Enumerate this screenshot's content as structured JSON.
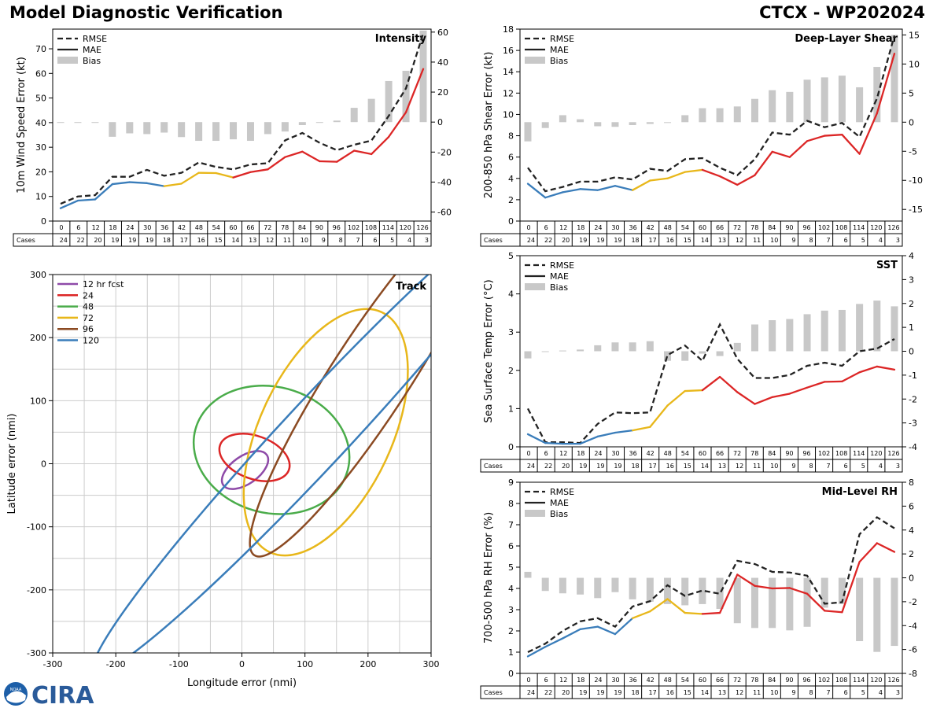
{
  "header": {
    "title": "Model Diagnostic Verification",
    "storm_id": "CTCX - WP202024"
  },
  "logos": {
    "noaa_text": "NOAA",
    "cira_text": "CIRA"
  },
  "colors": {
    "blue": "#3a7dba",
    "yellow": "#e8b71a",
    "red": "#dc2626",
    "bias": "#c8c8c8",
    "green": "#4aac4a",
    "brown": "#8b4a22",
    "purple": "#8e4aa8",
    "grid": "#cccccc"
  },
  "hours": [
    0,
    6,
    12,
    18,
    24,
    30,
    36,
    42,
    48,
    54,
    60,
    66,
    72,
    78,
    84,
    90,
    96,
    102,
    108,
    114,
    120,
    126
  ],
  "cases": [
    24,
    22,
    20,
    19,
    19,
    19,
    18,
    17,
    16,
    15,
    14,
    13,
    12,
    11,
    10,
    9,
    8,
    7,
    6,
    5,
    4,
    3
  ],
  "cases_label": "Cases",
  "legend_labels": {
    "rmse": "RMSE",
    "mae": "MAE",
    "bias": "Bias"
  },
  "chart_data": [
    {
      "id": "intensity",
      "type": "line",
      "title": "Intensity",
      "ylabel": "10m Wind Speed Error (kt)",
      "ylim": [
        0,
        78
      ],
      "yticks": [
        0,
        10,
        20,
        30,
        40,
        50,
        60,
        70
      ],
      "ylim2": [
        -66,
        62
      ],
      "yticks2": [
        -60,
        -40,
        -20,
        0,
        20,
        40,
        60
      ],
      "rmse": [
        7,
        10,
        10.5,
        18,
        18,
        20.8,
        18.4,
        19.6,
        23.8,
        22,
        21,
        23,
        23.5,
        32.8,
        35.8,
        31.8,
        28.8,
        31,
        32.7,
        42.7,
        53.9,
        76.3
      ],
      "mae": [
        5.2,
        8.3,
        8.8,
        15,
        15.8,
        15.4,
        14.2,
        15.2,
        19.6,
        19.5,
        17.7,
        19.9,
        21,
        26,
        28.2,
        24.3,
        24.1,
        28.6,
        27.2,
        34.2,
        44.2,
        61.8
      ],
      "bias": [
        0,
        0,
        -0.5,
        -9.8,
        -7.5,
        -8,
        -7,
        -10,
        -12.5,
        -12.5,
        -11.5,
        -12.5,
        -8,
        -6.3,
        -2,
        -0.5,
        1,
        9.5,
        15.5,
        27.4,
        34.2,
        61
      ]
    },
    {
      "id": "shear",
      "type": "line",
      "title": "Deep-Layer Shear",
      "ylabel": "200-850 hPa Shear Error (kt)",
      "ylim": [
        0,
        18
      ],
      "yticks": [
        0,
        2,
        4,
        6,
        8,
        10,
        12,
        14,
        16,
        18
      ],
      "ylim2": [
        -17,
        16
      ],
      "yticks2": [
        -15,
        -10,
        -5,
        0,
        5,
        10,
        15
      ],
      "rmse": [
        5,
        2.8,
        3.2,
        3.7,
        3.7,
        4.1,
        3.9,
        4.9,
        4.7,
        5.8,
        5.9,
        5,
        4.3,
        5.8,
        8.3,
        8.1,
        9.4,
        8.8,
        9.2,
        7.9,
        11.5,
        17.4
      ],
      "mae": [
        3.5,
        2.2,
        2.7,
        3,
        2.9,
        3.3,
        2.9,
        3.8,
        4,
        4.6,
        4.8,
        4.2,
        3.4,
        4.3,
        6.5,
        6,
        7.5,
        8,
        8.1,
        6.3,
        10.1,
        15.7
      ],
      "bias": [
        -3.3,
        -1,
        1.2,
        0.5,
        -0.7,
        -0.8,
        -0.5,
        -0.3,
        0,
        1.2,
        2.4,
        2.4,
        2.7,
        4,
        5.5,
        5.2,
        7.3,
        7.7,
        8,
        6,
        9.5,
        15
      ]
    },
    {
      "id": "sst",
      "type": "line",
      "title": "SST",
      "ylabel": "Sea Surface Temp Error (°C)",
      "ylim": [
        0,
        5
      ],
      "yticks": [
        0,
        1,
        2,
        3,
        4,
        5
      ],
      "ylim2": [
        -4,
        4
      ],
      "yticks2": [
        -4,
        -3,
        -2,
        -1,
        0,
        1,
        2,
        3,
        4
      ],
      "rmse": [
        1,
        0.12,
        0.12,
        0.1,
        0.6,
        0.9,
        0.88,
        0.9,
        2.4,
        2.65,
        2.25,
        3.2,
        2.3,
        1.8,
        1.8,
        1.88,
        2.12,
        2.2,
        2.12,
        2.5,
        2.57,
        2.82
      ],
      "mae": [
        0.33,
        0.1,
        0.08,
        0.08,
        0.27,
        0.37,
        0.43,
        0.52,
        1.08,
        1.46,
        1.48,
        1.83,
        1.43,
        1.12,
        1.3,
        1.39,
        1.55,
        1.7,
        1.71,
        1.95,
        2.1,
        2.02
      ],
      "bias": [
        -0.3,
        0,
        0.03,
        0.07,
        0.25,
        0.37,
        0.37,
        0.42,
        -0.4,
        -0.4,
        -0.1,
        -0.2,
        0.35,
        1.12,
        1.3,
        1.35,
        1.55,
        1.7,
        1.73,
        1.98,
        2.12,
        1.88
      ]
    },
    {
      "id": "rh",
      "type": "line",
      "title": "Mid-Level RH",
      "ylabel": "700-500 hPa RH Error (%)",
      "ylim": [
        0,
        9
      ],
      "yticks": [
        0,
        1,
        2,
        3,
        4,
        5,
        6,
        7,
        8,
        9
      ],
      "ylim2": [
        -8,
        8
      ],
      "yticks2": [
        -8,
        -6,
        -4,
        -2,
        0,
        2,
        4,
        6,
        8
      ],
      "rmse": [
        1,
        1.4,
        2,
        2.45,
        2.6,
        2.2,
        3.15,
        3.4,
        4.15,
        3.65,
        3.9,
        3.75,
        5.3,
        5.15,
        4.78,
        4.75,
        4.6,
        3.28,
        3.35,
        6.55,
        7.35,
        6.83
      ],
      "mae": [
        0.8,
        1.25,
        1.65,
        2.08,
        2.2,
        1.85,
        2.6,
        2.92,
        3.5,
        2.85,
        2.8,
        2.85,
        4.65,
        4.12,
        4,
        4.02,
        3.75,
        2.95,
        2.88,
        5.25,
        6.13,
        5.72
      ],
      "bias": [
        0.5,
        -1.1,
        -1.3,
        -1.4,
        -1.7,
        -1.2,
        -1.8,
        -2,
        -2.2,
        -2.3,
        -2.2,
        -2.6,
        -3.8,
        -4.2,
        -4.2,
        -4.4,
        -4.1,
        -2.5,
        -2.2,
        -5.3,
        -6.2,
        -5.7
      ]
    },
    {
      "id": "track",
      "type": "ellipse",
      "title": "Track",
      "xlabel": "Longitude error (nmi)",
      "ylabel": "Latitude error (nmi)",
      "xlim": [
        -300,
        300
      ],
      "ylim": [
        -300,
        300
      ],
      "xticks": [
        -300,
        -200,
        -100,
        0,
        100,
        200,
        300
      ],
      "yticks": [
        -300,
        -200,
        -100,
        0,
        100,
        200,
        300
      ],
      "ellipses": [
        {
          "label": "12 hr fcst",
          "color": "#8e4aa8",
          "cx": 5,
          "cy": -10,
          "rx": 42,
          "ry": 22,
          "angle": 35
        },
        {
          "label": "24",
          "color": "#dc2626",
          "cx": 20,
          "cy": 10,
          "rx": 58,
          "ry": 34,
          "angle": -20
        },
        {
          "label": "48",
          "color": "#4aac4a",
          "cx": 47,
          "cy": 22,
          "rx": 125,
          "ry": 100,
          "angle": -15
        },
        {
          "label": "72",
          "color": "#e8b71a",
          "cx": 133,
          "cy": 50,
          "rx": 210,
          "ry": 105,
          "angle": 65
        },
        {
          "label": "96",
          "color": "#8b4a22",
          "cx": 205,
          "cy": 140,
          "rx": 340,
          "ry": 62,
          "angle": 57
        },
        {
          "label": "120",
          "color": "#3a7dba",
          "cx": 120,
          "cy": 50,
          "rx": 520,
          "ry": 52,
          "angle": 47
        }
      ]
    }
  ]
}
